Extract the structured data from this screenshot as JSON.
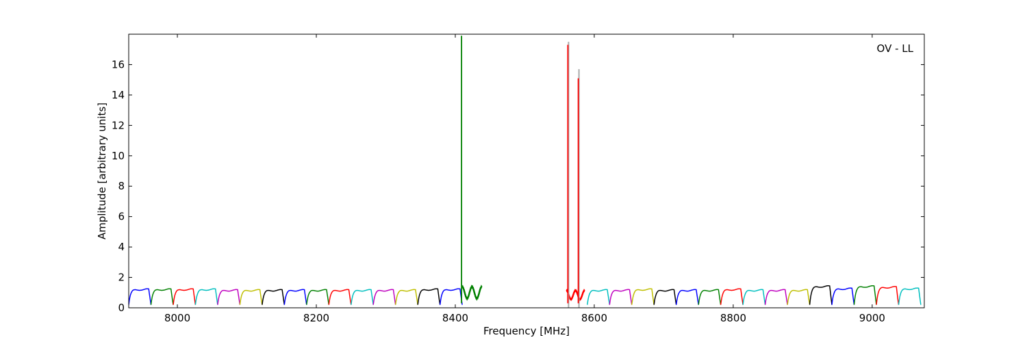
{
  "chart_data": {
    "type": "line",
    "title": "",
    "annotation": "OV - LL",
    "xlabel": "Frequency [MHz]",
    "ylabel": "Amplitude [arbitrary units]",
    "xlim": [
      7930,
      9075
    ],
    "ylim": [
      0,
      18
    ],
    "xticks": [
      8000,
      8200,
      8400,
      8600,
      8800,
      9000
    ],
    "yticks": [
      0,
      2,
      4,
      6,
      8,
      10,
      12,
      14,
      16
    ],
    "grid": false,
    "channel_width_mhz": 32,
    "channel_colors": [
      "#0000ff",
      "#008000",
      "#ff0000",
      "#00bfbf",
      "#bf00bf",
      "#bfbf00",
      "#000000"
    ],
    "channels": [
      {
        "start": 7930,
        "color": "#0000ff",
        "level": 1.2
      },
      {
        "start": 7962,
        "color": "#008000",
        "level": 1.2
      },
      {
        "start": 7994,
        "color": "#ff0000",
        "level": 1.2
      },
      {
        "start": 8026,
        "color": "#00bfbf",
        "level": 1.2
      },
      {
        "start": 8058,
        "color": "#bf00bf",
        "level": 1.15
      },
      {
        "start": 8090,
        "color": "#bfbf00",
        "level": 1.15
      },
      {
        "start": 8122,
        "color": "#000000",
        "level": 1.15
      },
      {
        "start": 8154,
        "color": "#0000ff",
        "level": 1.15
      },
      {
        "start": 8186,
        "color": "#008000",
        "level": 1.15
      },
      {
        "start": 8218,
        "color": "#ff0000",
        "level": 1.15
      },
      {
        "start": 8250,
        "color": "#00bfbf",
        "level": 1.15
      },
      {
        "start": 8282,
        "color": "#bf00bf",
        "level": 1.15
      },
      {
        "start": 8314,
        "color": "#bfbf00",
        "level": 1.15
      },
      {
        "start": 8346,
        "color": "#000000",
        "level": 1.2
      },
      {
        "start": 8378,
        "color": "#0000ff",
        "level": 1.2
      },
      {
        "start": 8590,
        "color": "#00bfbf",
        "level": 1.15
      },
      {
        "start": 8622,
        "color": "#bf00bf",
        "level": 1.15
      },
      {
        "start": 8654,
        "color": "#bfbf00",
        "level": 1.2
      },
      {
        "start": 8686,
        "color": "#000000",
        "level": 1.15
      },
      {
        "start": 8718,
        "color": "#0000ff",
        "level": 1.15
      },
      {
        "start": 8750,
        "color": "#008000",
        "level": 1.15
      },
      {
        "start": 8782,
        "color": "#ff0000",
        "level": 1.2
      },
      {
        "start": 8814,
        "color": "#00bfbf",
        "level": 1.15
      },
      {
        "start": 8846,
        "color": "#bf00bf",
        "level": 1.15
      },
      {
        "start": 8878,
        "color": "#bfbf00",
        "level": 1.15
      },
      {
        "start": 8910,
        "color": "#000000",
        "level": 1.4
      },
      {
        "start": 8942,
        "color": "#0000ff",
        "level": 1.25
      },
      {
        "start": 8974,
        "color": "#008000",
        "level": 1.4
      },
      {
        "start": 9006,
        "color": "#ff0000",
        "level": 1.35
      },
      {
        "start": 9038,
        "color": "#00bfbf",
        "level": 1.25
      }
    ],
    "ripple_segments": [
      {
        "start": 8410,
        "end": 8438,
        "color": "#008000",
        "level": 1.0,
        "amplitude": 0.4
      },
      {
        "start": 8560,
        "end": 8586,
        "color": "#ff0000",
        "level": 0.85,
        "amplitude": 0.3
      }
    ],
    "spikes": [
      {
        "x": 8409,
        "y": 17.9,
        "color": "#008000"
      },
      {
        "x": 8562,
        "y": 17.3,
        "color": "#ff0000"
      },
      {
        "x": 8577,
        "y": 15.1,
        "color": "#ff0000"
      }
    ],
    "shadow_spikes": [
      {
        "x": 8562,
        "y": 17.5
      },
      {
        "x": 8577,
        "y": 15.7
      }
    ]
  }
}
